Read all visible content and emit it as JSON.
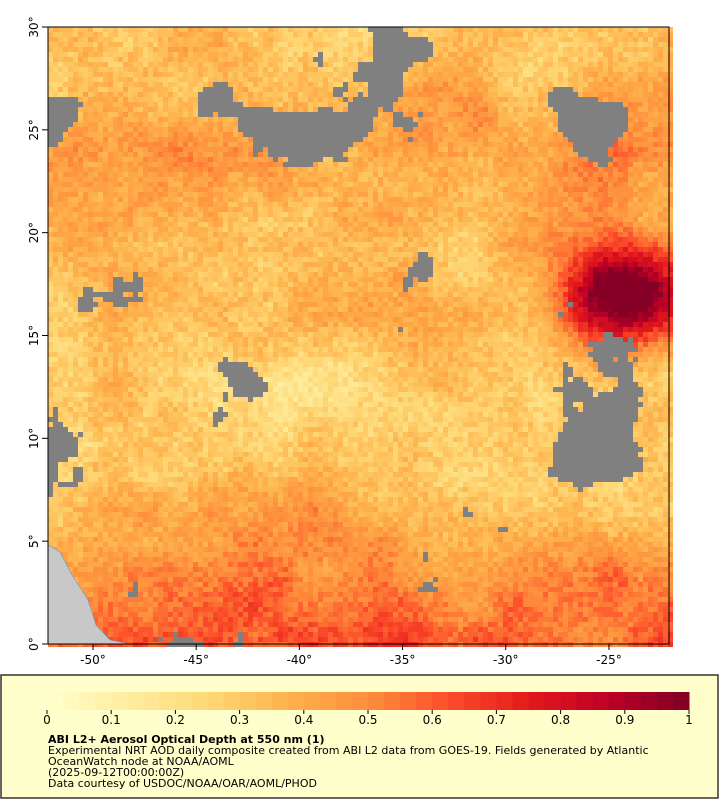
{
  "map": {
    "xlim": [
      -52.18,
      -22.09
    ],
    "ylim": [
      0,
      30
    ],
    "xticks": [
      {
        "value": -50,
        "label": "-50°"
      },
      {
        "value": -45,
        "label": "-45°"
      },
      {
        "value": -40,
        "label": "-40°"
      },
      {
        "value": -35,
        "label": "-35°"
      },
      {
        "value": -30,
        "label": "-30°"
      },
      {
        "value": -25,
        "label": "-25°"
      }
    ],
    "yticks": [
      {
        "value": 0,
        "label": "0°"
      },
      {
        "value": 5,
        "label": "5°"
      },
      {
        "value": 10,
        "label": "10°"
      },
      {
        "value": 15,
        "label": "15°"
      },
      {
        "value": 20,
        "label": "20°"
      },
      {
        "value": 25,
        "label": "25°"
      },
      {
        "value": 30,
        "label": "30°"
      }
    ],
    "cloud_color": "#808080",
    "land_color": "#c8c8c8"
  },
  "colorbar": {
    "lim": [
      0,
      1
    ],
    "ticks": [
      0,
      0.1,
      0.2,
      0.3,
      0.4,
      0.5,
      0.6,
      0.7,
      0.8,
      0.9,
      1
    ],
    "colormap": [
      "#ffffcc",
      "#ffeda0",
      "#fed976",
      "#feb24c",
      "#fd8d3c",
      "#fc4e2a",
      "#e31a1c",
      "#bd0026",
      "#800026"
    ]
  },
  "caption": {
    "title": "ABI L2+ Aerosol Optical Depth at 550 nm (1)",
    "lines": [
      "Experimental NRT AOD daily composite created from ABI L2 data from GOES-19. Fields generated by Atlantic",
      "OceanWatch node at NOAA/AOML",
      "(2025-09-12T00:00:00Z)",
      "Data courtesy of USDOC/NOAA/OAR/AOML/PHOD"
    ]
  }
}
